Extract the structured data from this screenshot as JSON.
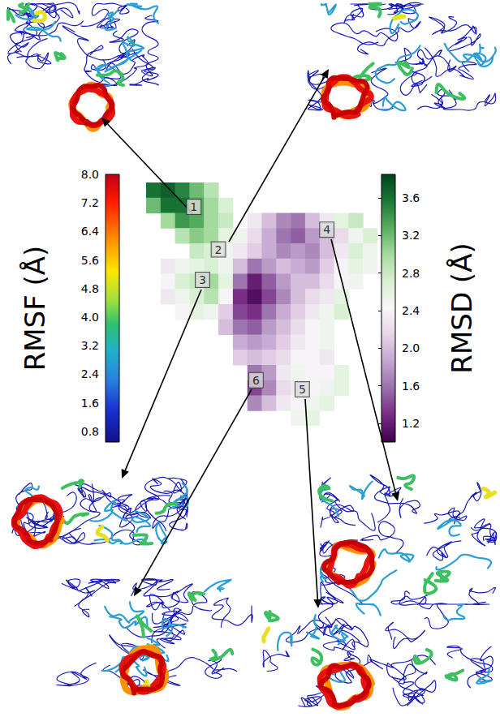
{
  "chart_data": {
    "type": "heatmap",
    "tick_labels": false,
    "xlim": [
      0,
      16
    ],
    "ylim": [
      0,
      16
    ],
    "cells": [
      [
        3.6,
        3.7,
        3.5,
        3.2,
        2.9,
        null,
        null,
        null,
        null,
        null,
        null,
        null,
        null,
        null,
        null,
        null
      ],
      [
        3.2,
        3.6,
        3.6,
        3.3,
        3.0,
        2.7,
        null,
        null,
        null,
        null,
        null,
        null,
        null,
        null,
        null,
        null
      ],
      [
        null,
        3.0,
        3.4,
        3.3,
        3.0,
        2.8,
        null,
        2.3,
        2.0,
        1.7,
        1.6,
        2.0,
        2.3,
        2.6,
        2.8,
        null
      ],
      [
        null,
        null,
        2.9,
        3.1,
        3.0,
        2.6,
        2.5,
        2.2,
        1.9,
        1.6,
        1.5,
        1.8,
        2.0,
        2.2,
        2.5,
        2.7
      ],
      [
        null,
        null,
        null,
        2.8,
        2.7,
        2.5,
        2.3,
        2.1,
        1.9,
        1.7,
        1.8,
        1.7,
        2.0,
        2.3,
        2.7,
        2.5
      ],
      [
        null,
        2.3,
        2.5,
        2.6,
        2.7,
        2.5,
        2.0,
        1.6,
        1.8,
        2.0,
        1.9,
        1.8,
        2.1,
        2.4,
        2.6,
        2.5
      ],
      [
        null,
        2.4,
        2.7,
        2.8,
        3.0,
        2.6,
        1.6,
        1.2,
        1.5,
        1.8,
        2.0,
        2.0,
        2.2,
        2.4,
        2.5,
        null
      ],
      [
        null,
        2.3,
        2.5,
        2.7,
        2.9,
        2.4,
        1.3,
        1.1,
        1.4,
        1.7,
        2.0,
        2.2,
        2.3,
        2.6,
        null,
        null
      ],
      [
        null,
        null,
        2.4,
        2.6,
        2.5,
        2.1,
        1.4,
        1.3,
        1.6,
        1.9,
        2.1,
        2.3,
        2.5,
        2.7,
        null,
        null
      ],
      [
        null,
        null,
        null,
        null,
        null,
        2.0,
        1.6,
        1.5,
        1.8,
        2.0,
        2.2,
        2.4,
        2.5,
        null,
        null,
        null
      ],
      [
        null,
        null,
        null,
        null,
        null,
        null,
        1.9,
        1.8,
        1.9,
        2.1,
        2.3,
        2.4,
        2.5,
        null,
        null,
        null
      ],
      [
        null,
        null,
        null,
        null,
        null,
        null,
        2.1,
        2.0,
        2.1,
        2.2,
        2.4,
        2.4,
        2.3,
        null,
        null,
        null
      ],
      [
        null,
        null,
        null,
        null,
        null,
        null,
        null,
        1.6,
        1.8,
        2.3,
        2.5,
        2.4,
        2.4,
        2.6,
        null,
        null
      ],
      [
        null,
        null,
        null,
        null,
        null,
        null,
        null,
        1.4,
        1.7,
        2.2,
        2.3,
        2.4,
        2.5,
        2.6,
        null,
        null
      ],
      [
        null,
        null,
        null,
        null,
        null,
        null,
        null,
        1.7,
        2.0,
        2.3,
        2.4,
        2.5,
        2.6,
        null,
        null,
        null
      ],
      [
        null,
        null,
        null,
        null,
        null,
        null,
        null,
        null,
        null,
        null,
        2.5,
        2.6,
        null,
        null,
        null,
        null
      ]
    ],
    "regions": [
      {
        "label": "1",
        "x": 3.3,
        "y": 14.4
      },
      {
        "label": "2",
        "x": 5.0,
        "y": 11.6
      },
      {
        "label": "3",
        "x": 3.9,
        "y": 9.6
      },
      {
        "label": "4",
        "x": 12.5,
        "y": 12.9
      },
      {
        "label": "5",
        "x": 10.8,
        "y": 2.4
      },
      {
        "label": "6",
        "x": 7.6,
        "y": 3.0
      }
    ],
    "color_scale": {
      "title": "RMSD (Å)",
      "range": [
        1.0,
        3.85
      ],
      "ticks": [
        1.2,
        1.6,
        {
          "value": 2,
          "label": "2.0"
        },
        2.4,
        2.8,
        3.2,
        3.6
      ]
    },
    "rmsf_scale": {
      "title": "RMSF (Å)",
      "range": [
        0.5,
        8.0
      ],
      "ticks": [
        0.8,
        1.6,
        2.4,
        3.2,
        {
          "value": 4,
          "label": "4.0"
        },
        4.8,
        5.6,
        6.4,
        7.2,
        {
          "value": 8,
          "label": "8.0"
        }
      ]
    }
  }
}
